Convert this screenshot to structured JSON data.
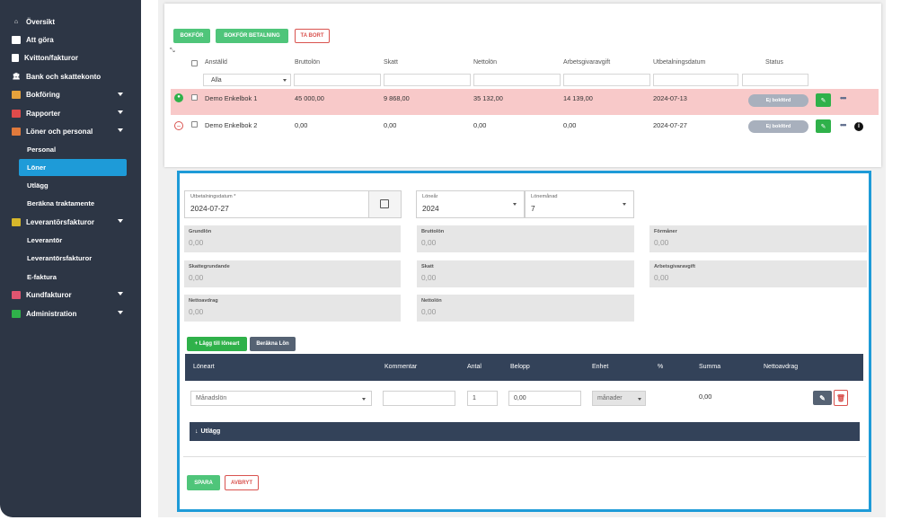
{
  "sidebar": {
    "items": [
      {
        "label": "Översikt",
        "icon": "home-icon"
      },
      {
        "label": "Att göra",
        "icon": "inbox-icon"
      },
      {
        "label": "Kvitton/fakturor",
        "icon": "receipt-icon"
      },
      {
        "label": "Bank och skattekonto",
        "icon": "bank-icon"
      },
      {
        "label": "Bokföring",
        "icon": "book-icon"
      },
      {
        "label": "Rapporter",
        "icon": "chart-icon"
      },
      {
        "label": "Löner och personal",
        "icon": "payroll-icon"
      },
      {
        "label": "Personal"
      },
      {
        "label": "Löner"
      },
      {
        "label": "Utlägg"
      },
      {
        "label": "Beräkna traktamente"
      },
      {
        "label": "Leverantörsfakturor",
        "icon": "supplier-icon"
      },
      {
        "label": "Leverantör"
      },
      {
        "label": "Leverantörsfakturor"
      },
      {
        "label": "E-faktura"
      },
      {
        "label": "Kundfakturor",
        "icon": "customer-icon"
      },
      {
        "label": "Administration",
        "icon": "admin-icon"
      }
    ]
  },
  "toolbar": {
    "bokfor": "BOKFÖR",
    "bokfor_betalning": "BOKFÖR BETALNING",
    "ta_bort": "TA BORT"
  },
  "table": {
    "headers": [
      "Anställd",
      "Bruttolön",
      "Skatt",
      "Nettolön",
      "Arbetsgivaravgift",
      "Utbetalningsdatum",
      "Status"
    ],
    "filter_employee": "Alla",
    "rows": [
      {
        "name": "Demo Enkelbok 1",
        "brutto": "45 000,00",
        "skatt": "9 868,00",
        "netto": "35 132,00",
        "avgift": "14 139,00",
        "datum": "2024-07-13",
        "status": "Ej bokförd"
      },
      {
        "name": "Demo Enkelbok 2",
        "brutto": "0,00",
        "skatt": "0,00",
        "netto": "0,00",
        "avgift": "0,00",
        "datum": "2024-07-27",
        "status": "Ej bokförd"
      }
    ]
  },
  "form": {
    "utbetalningsdatum_label": "Utbetalningsdatum *",
    "utbetalningsdatum": "2024-07-27",
    "lonear_label": "Löneår",
    "lonear": "2024",
    "lonemanad_label": "Lönemånad",
    "lonemanad": "7",
    "grundlon_label": "Grundlön",
    "grundlon": "0,00",
    "bruttolon_label": "Bruttolön",
    "bruttolon": "0,00",
    "formaner_label": "Förmåner",
    "formaner": "0,00",
    "skattegrundande_label": "Skattegrundande",
    "skattegrundande": "0,00",
    "skatt_label": "Skatt",
    "skatt": "0,00",
    "arbetsgivaravgift_label": "Arbetsgivaravgift",
    "arbetsgivaravgift": "0,00",
    "nettoavdrag_label": "Nettoavdrag",
    "nettoavdrag": "0,00",
    "nettolon_label": "Nettolön",
    "nettolon": "0,00",
    "add_loneart": "+ Lägg till löneart",
    "berakna_lon": "Beräkna Lön",
    "line_headers": [
      "Löneart",
      "Kommentar",
      "Antal",
      "Belopp",
      "Enhet",
      "%",
      "Summa",
      "Nettoavdrag"
    ],
    "line": {
      "loneart": "Månadslön",
      "kommentar": "",
      "antal": "1",
      "belopp": "0,00",
      "enhet": "månader",
      "summa": "0,00"
    },
    "utlagg": "Utlägg",
    "spara": "SPARA",
    "avbryt": "AVBRYT"
  }
}
